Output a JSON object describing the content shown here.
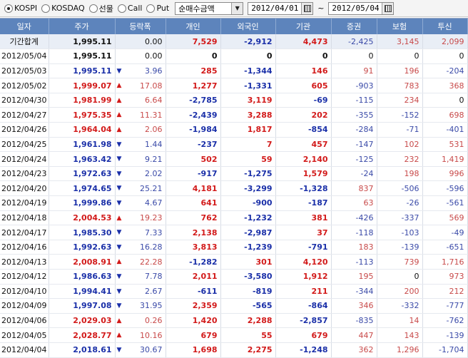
{
  "toolbar": {
    "radios": [
      {
        "label": "KOSPI",
        "selected": true
      },
      {
        "label": "KOSDAQ",
        "selected": false
      },
      {
        "label": "선물",
        "selected": false
      },
      {
        "label": "Call",
        "selected": false
      },
      {
        "label": "Put",
        "selected": false
      }
    ],
    "view_select": "순매수금액",
    "date_from": "2012/04/01",
    "date_separator": "~",
    "date_to": "2012/05/04"
  },
  "table": {
    "headers": [
      "일자",
      "주가",
      "등락폭",
      "개인",
      "외국인",
      "기관",
      "증권",
      "보험",
      "투신"
    ],
    "rows": [
      {
        "date": "기간합계",
        "price": "1,995.11",
        "dir": "",
        "chg": "0.00",
        "indiv": "7,529",
        "foreign": "-2,912",
        "inst": "4,473",
        "sec": "-2,425",
        "ins": "3,145",
        "trust": "2,099"
      },
      {
        "date": "2012/05/04",
        "price": "1,995.11",
        "dir": "",
        "chg": "0.00",
        "indiv": "0",
        "foreign": "0",
        "inst": "0",
        "sec": "0",
        "ins": "0",
        "trust": "0"
      },
      {
        "date": "2012/05/03",
        "price": "1,995.11",
        "dir": "down",
        "chg": "3.96",
        "indiv": "285",
        "foreign": "-1,344",
        "inst": "146",
        "sec": "91",
        "ins": "196",
        "trust": "-204"
      },
      {
        "date": "2012/05/02",
        "price": "1,999.07",
        "dir": "up",
        "chg": "17.08",
        "indiv": "1,277",
        "foreign": "-1,331",
        "inst": "605",
        "sec": "-903",
        "ins": "783",
        "trust": "368"
      },
      {
        "date": "2012/04/30",
        "price": "1,981.99",
        "dir": "up",
        "chg": "6.64",
        "indiv": "-2,785",
        "foreign": "3,119",
        "inst": "-69",
        "sec": "-115",
        "ins": "234",
        "trust": "0"
      },
      {
        "date": "2012/04/27",
        "price": "1,975.35",
        "dir": "up",
        "chg": "11.31",
        "indiv": "-2,439",
        "foreign": "3,288",
        "inst": "202",
        "sec": "-355",
        "ins": "-152",
        "trust": "698"
      },
      {
        "date": "2012/04/26",
        "price": "1,964.04",
        "dir": "up",
        "chg": "2.06",
        "indiv": "-1,984",
        "foreign": "1,817",
        "inst": "-854",
        "sec": "-284",
        "ins": "-71",
        "trust": "-401"
      },
      {
        "date": "2012/04/25",
        "price": "1,961.98",
        "dir": "down",
        "chg": "1.44",
        "indiv": "-237",
        "foreign": "7",
        "inst": "457",
        "sec": "-147",
        "ins": "102",
        "trust": "531"
      },
      {
        "date": "2012/04/24",
        "price": "1,963.42",
        "dir": "down",
        "chg": "9.21",
        "indiv": "502",
        "foreign": "59",
        "inst": "2,140",
        "sec": "-125",
        "ins": "232",
        "trust": "1,419"
      },
      {
        "date": "2012/04/23",
        "price": "1,972.63",
        "dir": "down",
        "chg": "2.02",
        "indiv": "-917",
        "foreign": "-1,275",
        "inst": "1,579",
        "sec": "-24",
        "ins": "198",
        "trust": "996"
      },
      {
        "date": "2012/04/20",
        "price": "1,974.65",
        "dir": "down",
        "chg": "25.21",
        "indiv": "4,181",
        "foreign": "-3,299",
        "inst": "-1,328",
        "sec": "837",
        "ins": "-506",
        "trust": "-596"
      },
      {
        "date": "2012/04/19",
        "price": "1,999.86",
        "dir": "down",
        "chg": "4.67",
        "indiv": "641",
        "foreign": "-900",
        "inst": "-187",
        "sec": "63",
        "ins": "-26",
        "trust": "-561"
      },
      {
        "date": "2012/04/18",
        "price": "2,004.53",
        "dir": "up",
        "chg": "19.23",
        "indiv": "762",
        "foreign": "-1,232",
        "inst": "381",
        "sec": "-426",
        "ins": "-337",
        "trust": "569"
      },
      {
        "date": "2012/04/17",
        "price": "1,985.30",
        "dir": "down",
        "chg": "7.33",
        "indiv": "2,138",
        "foreign": "-2,987",
        "inst": "37",
        "sec": "-118",
        "ins": "-103",
        "trust": "-49"
      },
      {
        "date": "2012/04/16",
        "price": "1,992.63",
        "dir": "down",
        "chg": "16.28",
        "indiv": "3,813",
        "foreign": "-1,239",
        "inst": "-791",
        "sec": "183",
        "ins": "-139",
        "trust": "-651"
      },
      {
        "date": "2012/04/13",
        "price": "2,008.91",
        "dir": "up",
        "chg": "22.28",
        "indiv": "-1,282",
        "foreign": "301",
        "inst": "4,120",
        "sec": "-113",
        "ins": "739",
        "trust": "1,716"
      },
      {
        "date": "2012/04/12",
        "price": "1,986.63",
        "dir": "down",
        "chg": "7.78",
        "indiv": "2,011",
        "foreign": "-3,580",
        "inst": "1,912",
        "sec": "195",
        "ins": "0",
        "trust": "973"
      },
      {
        "date": "2012/04/10",
        "price": "1,994.41",
        "dir": "down",
        "chg": "2.67",
        "indiv": "-611",
        "foreign": "-819",
        "inst": "211",
        "sec": "-344",
        "ins": "200",
        "trust": "212"
      },
      {
        "date": "2012/04/09",
        "price": "1,997.08",
        "dir": "down",
        "chg": "31.95",
        "indiv": "2,359",
        "foreign": "-565",
        "inst": "-864",
        "sec": "346",
        "ins": "-332",
        "trust": "-777"
      },
      {
        "date": "2012/04/06",
        "price": "2,029.03",
        "dir": "up",
        "chg": "0.26",
        "indiv": "1,420",
        "foreign": "2,288",
        "inst": "-2,857",
        "sec": "-835",
        "ins": "14",
        "trust": "-762"
      },
      {
        "date": "2012/04/05",
        "price": "2,028.77",
        "dir": "up",
        "chg": "10.16",
        "indiv": "679",
        "foreign": "55",
        "inst": "679",
        "sec": "447",
        "ins": "143",
        "trust": "-139"
      },
      {
        "date": "2012/04/04",
        "price": "2,018.61",
        "dir": "down",
        "chg": "30.67",
        "indiv": "1,698",
        "foreign": "2,275",
        "inst": "-1,248",
        "sec": "362",
        "ins": "1,296",
        "trust": "-1,704"
      }
    ]
  },
  "colors": {
    "header_bg": "#5d84bc",
    "up": "#d21a1a",
    "down": "#1a2fa8",
    "summary_bg": "#e9eef6"
  }
}
